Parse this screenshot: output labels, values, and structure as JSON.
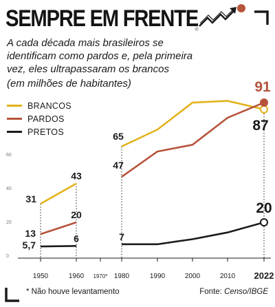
{
  "title": "SEMPRE EM FRENTE",
  "subtitle": "A cada década mais brasileiros se identificam como pardos e, pela primeira vez, eles ultrapassaram os brancos",
  "units": "(em milhões de habitantes)",
  "footnote": "* Não houve levantamento",
  "source_label": "Fonte:",
  "source_value": "Censo/IBGE",
  "colors": {
    "brancos": "#e3b21a",
    "pardos": "#b5533b",
    "pretos": "#1a1a1a"
  },
  "icons": [
    "growth-arrow-icon",
    "corner-bracket-icon"
  ],
  "chart_data": {
    "type": "line",
    "title": "SEMPRE EM FRENTE",
    "x": [
      "1950",
      "1960",
      "1970*",
      "1980",
      "1990",
      "2000",
      "2010",
      "2022"
    ],
    "ylim": [
      0,
      100
    ],
    "yticks": [
      0,
      20,
      40,
      60
    ],
    "grid": false,
    "legend": "top-left",
    "gap_note": "* Não houve levantamento",
    "series": [
      {
        "name": "BRANCOS",
        "color": "#e3b21a",
        "points": [
          {
            "x": "1950",
            "y": 31,
            "label": "31"
          },
          {
            "x": "1960",
            "y": 43,
            "label": "43"
          },
          {
            "x": "1980",
            "y": 65,
            "label": "65"
          },
          {
            "x": "1990",
            "y": 75
          },
          {
            "x": "2000",
            "y": 91
          },
          {
            "x": "2010",
            "y": 92
          },
          {
            "x": "2022",
            "y": 87,
            "label": "87"
          }
        ]
      },
      {
        "name": "PARDOS",
        "color": "#b5533b",
        "points": [
          {
            "x": "1950",
            "y": 13,
            "label": "13"
          },
          {
            "x": "1960",
            "y": 20,
            "label": "20"
          },
          {
            "x": "1980",
            "y": 47,
            "label": "47"
          },
          {
            "x": "1990",
            "y": 62
          },
          {
            "x": "2000",
            "y": 66
          },
          {
            "x": "2010",
            "y": 82
          },
          {
            "x": "2022",
            "y": 91,
            "label": "91"
          }
        ]
      },
      {
        "name": "PRETOS",
        "color": "#1a1a1a",
        "points": [
          {
            "x": "1950",
            "y": 5.7,
            "label": "5,7"
          },
          {
            "x": "1960",
            "y": 6,
            "label": "6"
          },
          {
            "x": "1980",
            "y": 7,
            "label": "7"
          },
          {
            "x": "1990",
            "y": 7
          },
          {
            "x": "2000",
            "y": 10
          },
          {
            "x": "2010",
            "y": 14
          },
          {
            "x": "2022",
            "y": 20,
            "label": "20"
          }
        ]
      }
    ]
  }
}
